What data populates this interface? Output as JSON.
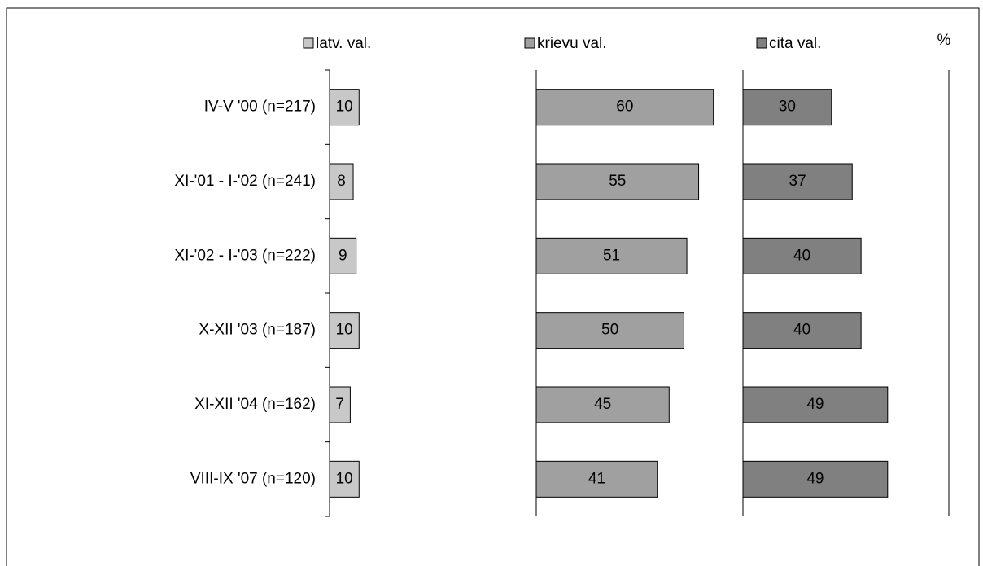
{
  "chart_data": {
    "type": "bar",
    "layout": "panels",
    "unit_label": "%",
    "categories": [
      "IV-V '00 (n=217)",
      "XI-'01 - I-'02 (n=241)",
      "XI-'02 - I-'03 (n=222)",
      "X-XII '03 (n=187)",
      "XI-XII '04 (n=162)",
      "VIII-IX '07 (n=120)"
    ],
    "series": [
      {
        "name": "latv. val.",
        "color": "#c8c8c8",
        "values": [
          10,
          8,
          9,
          10,
          7,
          10
        ]
      },
      {
        "name": "krievu val.",
        "color": "#a0a0a0",
        "values": [
          60,
          55,
          51,
          50,
          45,
          41
        ]
      },
      {
        "name": "cita val.",
        "color": "#808080",
        "values": [
          30,
          37,
          40,
          40,
          49,
          49
        ]
      }
    ],
    "xlim": [
      0,
      70
    ]
  }
}
